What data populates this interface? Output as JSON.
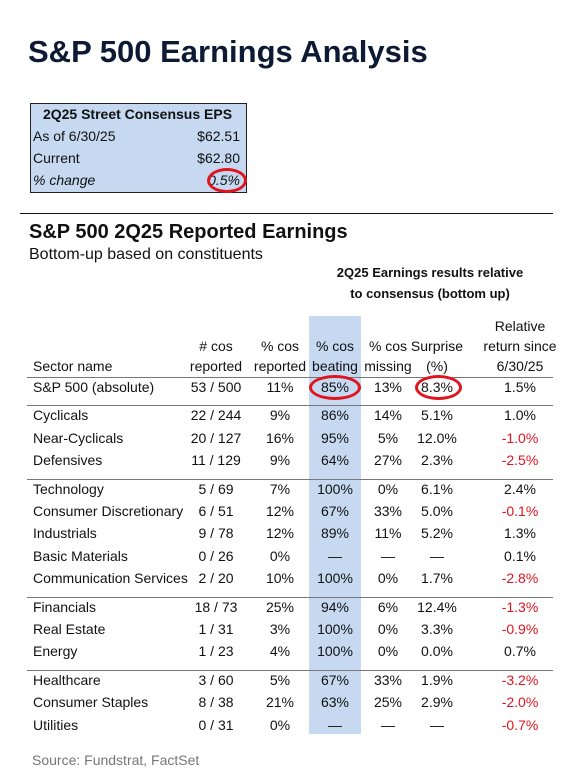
{
  "header": {
    "title": "S&P 500 Earnings Analysis"
  },
  "consensus": {
    "title": "2Q25 Street Consensus EPS",
    "rows": [
      [
        "As of 6/30/25",
        "$62.51"
      ],
      [
        "Current",
        "$62.80"
      ],
      [
        "% change",
        "0.5%"
      ]
    ]
  },
  "table": {
    "title": "S&P 500 2Q25 Reported Earnings",
    "subtitle": "Bottom-up based on constituents",
    "group_header": [
      "2Q25 Earnings results relative",
      "to consensus (bottom up)"
    ],
    "columns": [
      [
        "Sector name"
      ],
      [
        "# cos",
        "reported"
      ],
      [
        "% cos",
        "reported"
      ],
      [
        "% cos",
        "beating"
      ],
      [
        "% cos",
        "missing"
      ],
      [
        "Surprise",
        "(%)"
      ],
      [
        "Relative",
        "return since",
        "6/30/25"
      ]
    ],
    "groups": [
      [
        [
          "S&P 500 (absolute)",
          "53 / 500",
          "11%",
          "85%",
          "13%",
          "8.3%",
          "1.5%"
        ]
      ],
      [
        [
          "Cyclicals",
          "22 / 244",
          "9%",
          "86%",
          "14%",
          "5.1%",
          "1.0%"
        ],
        [
          "Near-Cyclicals",
          "20 / 127",
          "16%",
          "95%",
          "5%",
          "12.0%",
          "-1.0%"
        ],
        [
          "Defensives",
          "11 / 129",
          "9%",
          "64%",
          "27%",
          "2.3%",
          "-2.5%"
        ]
      ],
      [
        [
          "Technology",
          "5 / 69",
          "7%",
          "100%",
          "0%",
          "6.1%",
          "2.4%"
        ],
        [
          "Consumer Discretionary",
          "6 / 51",
          "12%",
          "67%",
          "33%",
          "5.0%",
          "-0.1%"
        ],
        [
          "Industrials",
          "9 / 78",
          "12%",
          "89%",
          "11%",
          "5.2%",
          "1.3%"
        ],
        [
          "Basic Materials",
          "0 / 26",
          "0%",
          "—",
          "—",
          "—",
          "0.1%"
        ],
        [
          "Communication Services",
          "2 / 20",
          "10%",
          "100%",
          "0%",
          "1.7%",
          "-2.8%"
        ]
      ],
      [
        [
          "Financials",
          "18 / 73",
          "25%",
          "94%",
          "6%",
          "12.4%",
          "-1.3%"
        ],
        [
          "Real Estate",
          "1 / 31",
          "3%",
          "100%",
          "0%",
          "3.3%",
          "-0.9%"
        ],
        [
          "Energy",
          "1 / 23",
          "4%",
          "100%",
          "0%",
          "0.0%",
          "0.7%"
        ]
      ],
      [
        [
          "Healthcare",
          "3 / 60",
          "5%",
          "67%",
          "33%",
          "1.9%",
          "-3.2%"
        ],
        [
          "Consumer Staples",
          "8 / 38",
          "21%",
          "63%",
          "25%",
          "2.9%",
          "-2.0%"
        ],
        [
          "Utilities",
          "0 / 31",
          "0%",
          "—",
          "—",
          "—",
          "-0.7%"
        ]
      ]
    ]
  },
  "source": "Source: Fundstrat, FactSet"
}
